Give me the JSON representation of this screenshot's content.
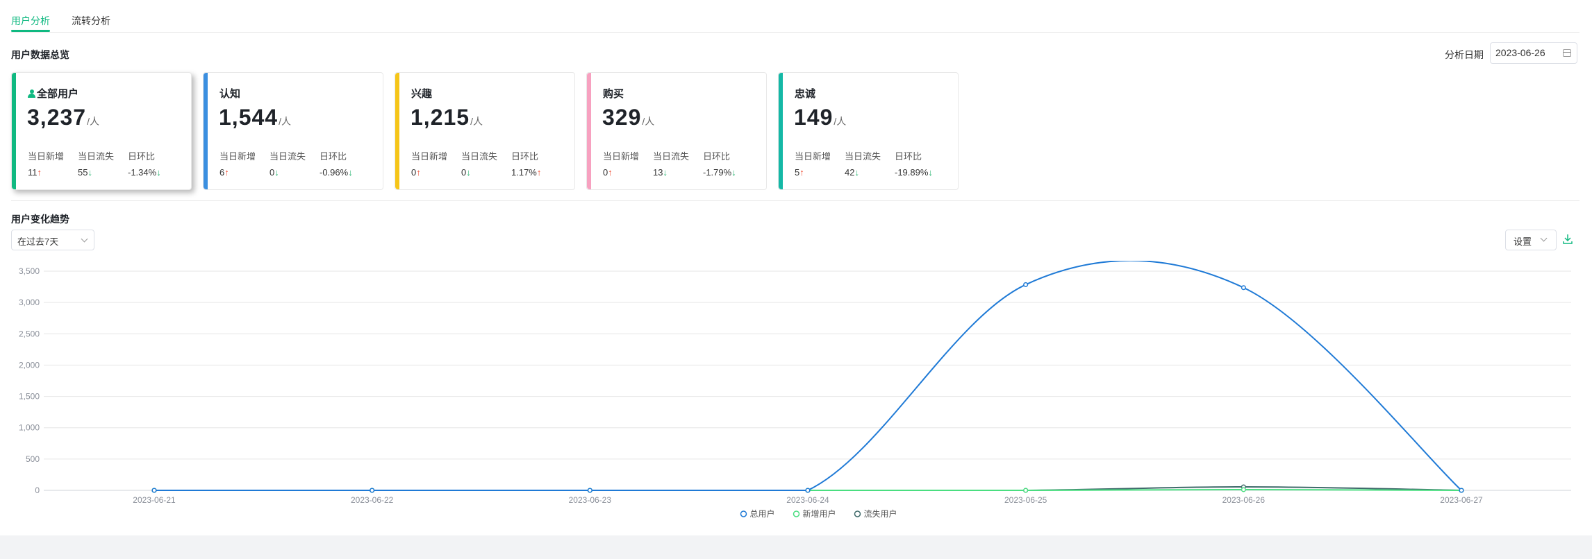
{
  "tabs": [
    {
      "label": "用户分析",
      "active": true
    },
    {
      "label": "流转分析",
      "active": false
    }
  ],
  "overview": {
    "title": "用户数据总览",
    "date_label": "分析日期",
    "date_value": "2023-06-26"
  },
  "cards": [
    {
      "title": "全部用户",
      "icon": "user-icon",
      "value": "3,237",
      "unit": "/人",
      "color": "#10b981",
      "stats": [
        {
          "label": "当日新增",
          "value": "11",
          "trend": "up"
        },
        {
          "label": "当日流失",
          "value": "55",
          "trend": "down"
        },
        {
          "label": "日环比",
          "value": "-1.34%",
          "trend": "down"
        }
      ]
    },
    {
      "title": "认知",
      "value": "1,544",
      "unit": "/人",
      "color": "#3b8fe0",
      "stats": [
        {
          "label": "当日新增",
          "value": "6",
          "trend": "up"
        },
        {
          "label": "当日流失",
          "value": "0",
          "trend": "down"
        },
        {
          "label": "日环比",
          "value": "-0.96%",
          "trend": "down"
        }
      ]
    },
    {
      "title": "兴趣",
      "value": "1,215",
      "unit": "/人",
      "color": "#f5c518",
      "stats": [
        {
          "label": "当日新增",
          "value": "0",
          "trend": "up"
        },
        {
          "label": "当日流失",
          "value": "0",
          "trend": "down"
        },
        {
          "label": "日环比",
          "value": "1.17%",
          "trend": "up"
        }
      ]
    },
    {
      "title": "购买",
      "value": "329",
      "unit": "/人",
      "color": "#f7a1c0",
      "stats": [
        {
          "label": "当日新增",
          "value": "0",
          "trend": "up"
        },
        {
          "label": "当日流失",
          "value": "13",
          "trend": "down"
        },
        {
          "label": "日环比",
          "value": "-1.79%",
          "trend": "down"
        }
      ]
    },
    {
      "title": "忠诚",
      "value": "149",
      "unit": "/人",
      "color": "#14b8a6",
      "stats": [
        {
          "label": "当日新增",
          "value": "5",
          "trend": "up"
        },
        {
          "label": "当日流失",
          "value": "42",
          "trend": "down"
        },
        {
          "label": "日环比",
          "value": "-19.89%",
          "trend": "down"
        }
      ]
    }
  ],
  "trend": {
    "title": "用户变化趋势",
    "range_value": "在过去7天",
    "settings_label": "设置"
  },
  "chart_data": {
    "type": "line",
    "x": [
      "2023-06-21",
      "2023-06-22",
      "2023-06-23",
      "2023-06-24",
      "2023-06-25",
      "2023-06-26",
      "2023-06-27"
    ],
    "ylim": [
      0,
      3500
    ],
    "yticks": [
      "0",
      "500",
      "1,000",
      "1,500",
      "2,000",
      "2,500",
      "3,000",
      "3,500"
    ],
    "grid": true,
    "legend_position": "bottom",
    "series": [
      {
        "name": "总用户",
        "color": "#1f7ad6",
        "values": [
          0,
          0,
          0,
          0,
          3285,
          3237,
          0
        ]
      },
      {
        "name": "新增用户",
        "color": "#4ade80",
        "values": [
          0,
          0,
          0,
          0,
          0,
          11,
          0
        ]
      },
      {
        "name": "流失用户",
        "color": "#3f6a6a",
        "values": [
          0,
          0,
          0,
          0,
          0,
          55,
          0
        ]
      }
    ]
  }
}
